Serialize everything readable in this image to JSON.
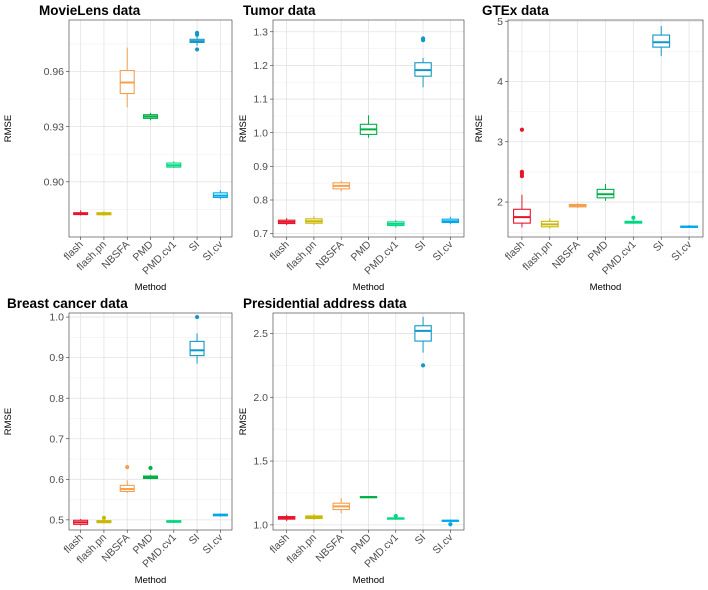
{
  "chart_data": [
    {
      "type": "boxplot",
      "title": "MovieLens data",
      "xlabel": "Method",
      "ylabel": "RMSE",
      "ylim": [
        0.87,
        0.988
      ],
      "yticks": [
        0.9,
        0.93,
        0.96
      ],
      "ytick_labels": [
        "0.90",
        "0.93",
        "0.96"
      ],
      "categories": [
        "flash",
        "flash.pn",
        "NBSFA",
        "PMD",
        "PMD.cv1",
        "SI",
        "SI.cv"
      ],
      "boxes": [
        {
          "min": 0.8817,
          "q1": 0.8822,
          "median": 0.8827,
          "q3": 0.8832,
          "max": 0.8845,
          "outliers": []
        },
        {
          "min": 0.8815,
          "q1": 0.8821,
          "median": 0.8826,
          "q3": 0.8832,
          "max": 0.884,
          "outliers": []
        },
        {
          "min": 0.9405,
          "q1": 0.948,
          "median": 0.954,
          "q3": 0.9605,
          "max": 0.973,
          "outliers": []
        },
        {
          "min": 0.9335,
          "q1": 0.9345,
          "median": 0.9355,
          "q3": 0.9365,
          "max": 0.9375,
          "outliers": []
        },
        {
          "min": 0.9075,
          "q1": 0.908,
          "median": 0.909,
          "q3": 0.9102,
          "max": 0.9112,
          "outliers": []
        },
        {
          "min": 0.974,
          "q1": 0.9758,
          "median": 0.9765,
          "q3": 0.9775,
          "max": 0.9795,
          "outliers": [
            0.972,
            0.98,
            0.981
          ]
        },
        {
          "min": 0.8905,
          "q1": 0.8915,
          "median": 0.8925,
          "q3": 0.894,
          "max": 0.8955,
          "outliers": []
        }
      ]
    },
    {
      "type": "boxplot",
      "title": "Tumor data",
      "xlabel": "Method",
      "ylabel": "RMSE",
      "ylim": [
        0.69,
        1.335
      ],
      "yticks": [
        0.7,
        0.8,
        0.9,
        1.0,
        1.1,
        1.2,
        1.3
      ],
      "ytick_labels": [
        "0.7",
        "0.8",
        "0.9",
        "1.0",
        "1.1",
        "1.2",
        "1.3"
      ],
      "categories": [
        "flash",
        "flash.pn",
        "NBSFA",
        "PMD",
        "PMD.cv1",
        "SI",
        "SI.cv"
      ],
      "boxes": [
        {
          "min": 0.725,
          "q1": 0.73,
          "median": 0.735,
          "q3": 0.74,
          "max": 0.746,
          "outliers": []
        },
        {
          "min": 0.726,
          "q1": 0.731,
          "median": 0.737,
          "q3": 0.744,
          "max": 0.752,
          "outliers": []
        },
        {
          "min": 0.826,
          "q1": 0.833,
          "median": 0.842,
          "q3": 0.851,
          "max": 0.857,
          "outliers": []
        },
        {
          "min": 0.985,
          "q1": 0.995,
          "median": 1.01,
          "q3": 1.025,
          "max": 1.052,
          "outliers": []
        },
        {
          "min": 0.718,
          "q1": 0.724,
          "median": 0.729,
          "q3": 0.735,
          "max": 0.741,
          "outliers": []
        },
        {
          "min": 1.135,
          "q1": 1.168,
          "median": 1.186,
          "q3": 1.208,
          "max": 1.222,
          "outliers": [
            1.275,
            1.28
          ]
        },
        {
          "min": 0.728,
          "q1": 0.733,
          "median": 0.737,
          "q3": 0.743,
          "max": 0.75,
          "outliers": []
        }
      ]
    },
    {
      "type": "boxplot",
      "title": "GTEx data",
      "xlabel": "Method",
      "ylabel": "RMSE",
      "ylim": [
        1.42,
        5.02
      ],
      "yticks": [
        2,
        3,
        4,
        5
      ],
      "ytick_labels": [
        "2",
        "3",
        "4",
        "5"
      ],
      "categories": [
        "flash",
        "flash.pn",
        "NBSFA",
        "PMD",
        "PMD.cv1",
        "SI",
        "SI.cv"
      ],
      "boxes": [
        {
          "min": 1.58,
          "q1": 1.65,
          "median": 1.75,
          "q3": 1.88,
          "max": 2.12,
          "outliers": [
            2.43,
            2.47,
            2.5,
            3.2
          ]
        },
        {
          "min": 1.56,
          "q1": 1.59,
          "median": 1.63,
          "q3": 1.68,
          "max": 1.73,
          "outliers": []
        },
        {
          "min": 1.9,
          "q1": 1.92,
          "median": 1.94,
          "q3": 1.96,
          "max": 1.98,
          "outliers": []
        },
        {
          "min": 2.02,
          "q1": 2.07,
          "median": 2.13,
          "q3": 2.21,
          "max": 2.3,
          "outliers": []
        },
        {
          "min": 1.64,
          "q1": 1.65,
          "median": 1.66,
          "q3": 1.68,
          "max": 1.7,
          "outliers": [
            1.74
          ]
        },
        {
          "min": 4.42,
          "q1": 4.57,
          "median": 4.65,
          "q3": 4.77,
          "max": 4.92,
          "outliers": []
        },
        {
          "min": 1.57,
          "q1": 1.58,
          "median": 1.59,
          "q3": 1.6,
          "max": 1.62,
          "outliers": []
        }
      ]
    },
    {
      "type": "boxplot",
      "title": "Breast cancer data",
      "xlabel": "Method",
      "ylabel": "RMSE",
      "ylim": [
        0.475,
        1.01
      ],
      "yticks": [
        0.5,
        0.6,
        0.7,
        0.8,
        0.9,
        1.0
      ],
      "ytick_labels": [
        "0.5",
        "0.6",
        "0.7",
        "0.8",
        "0.9",
        "1.0"
      ],
      "categories": [
        "flash",
        "flash.pn",
        "NBSFA",
        "PMD",
        "PMD.cv1",
        "SI",
        "SI.cv"
      ],
      "boxes": [
        {
          "min": 0.486,
          "q1": 0.489,
          "median": 0.494,
          "q3": 0.499,
          "max": 0.502,
          "outliers": []
        },
        {
          "min": 0.491,
          "q1": 0.493,
          "median": 0.496,
          "q3": 0.498,
          "max": 0.5,
          "outliers": [
            0.505
          ]
        },
        {
          "min": 0.566,
          "q1": 0.57,
          "median": 0.576,
          "q3": 0.585,
          "max": 0.598,
          "outliers": [
            0.63
          ]
        },
        {
          "min": 0.6,
          "q1": 0.602,
          "median": 0.605,
          "q3": 0.608,
          "max": 0.611,
          "outliers": [
            0.628
          ]
        },
        {
          "min": 0.492,
          "q1": 0.494,
          "median": 0.496,
          "q3": 0.498,
          "max": 0.5,
          "outliers": []
        },
        {
          "min": 0.885,
          "q1": 0.905,
          "median": 0.918,
          "q3": 0.94,
          "max": 0.96,
          "outliers": [
            1.0
          ]
        },
        {
          "min": 0.508,
          "q1": 0.51,
          "median": 0.512,
          "q3": 0.514,
          "max": 0.516,
          "outliers": []
        }
      ]
    },
    {
      "type": "boxplot",
      "title": "Presidential address data",
      "xlabel": "Method",
      "ylabel": "RMSE",
      "ylim": [
        0.96,
        2.66
      ],
      "yticks": [
        1.0,
        1.5,
        2.0,
        2.5
      ],
      "ytick_labels": [
        "1.0",
        "1.5",
        "2.0",
        "2.5"
      ],
      "categories": [
        "flash",
        "flash.pn",
        "NBSFA",
        "PMD",
        "PMD.cv1",
        "SI",
        "SI.cv"
      ],
      "boxes": [
        {
          "min": 1.03,
          "q1": 1.045,
          "median": 1.055,
          "q3": 1.065,
          "max": 1.08,
          "outliers": []
        },
        {
          "min": 1.04,
          "q1": 1.05,
          "median": 1.06,
          "q3": 1.07,
          "max": 1.085,
          "outliers": []
        },
        {
          "min": 1.09,
          "q1": 1.12,
          "median": 1.145,
          "q3": 1.17,
          "max": 1.21,
          "outliers": []
        },
        {
          "min": 1.212,
          "q1": 1.215,
          "median": 1.218,
          "q3": 1.221,
          "max": 1.224,
          "outliers": []
        },
        {
          "min": 1.04,
          "q1": 1.045,
          "median": 1.05,
          "q3": 1.055,
          "max": 1.06,
          "outliers": [
            1.07
          ]
        },
        {
          "min": 2.35,
          "q1": 2.44,
          "median": 2.52,
          "q3": 2.56,
          "max": 2.63,
          "outliers": [
            2.25
          ]
        },
        {
          "min": 1.022,
          "q1": 1.028,
          "median": 1.032,
          "q3": 1.036,
          "max": 1.042,
          "outliers": [
            1.005
          ]
        }
      ]
    }
  ],
  "colors": [
    "#F8766D",
    "#C49A00",
    "#F28E2B",
    "#00BA38",
    "#00C08B",
    "#00A9C8",
    "#00B4EF"
  ],
  "box_colors": [
    "#E8132B",
    "#C9B800",
    "#F4A050",
    "#00B045",
    "#00D880",
    "#1098C8",
    "#00A8E8"
  ]
}
